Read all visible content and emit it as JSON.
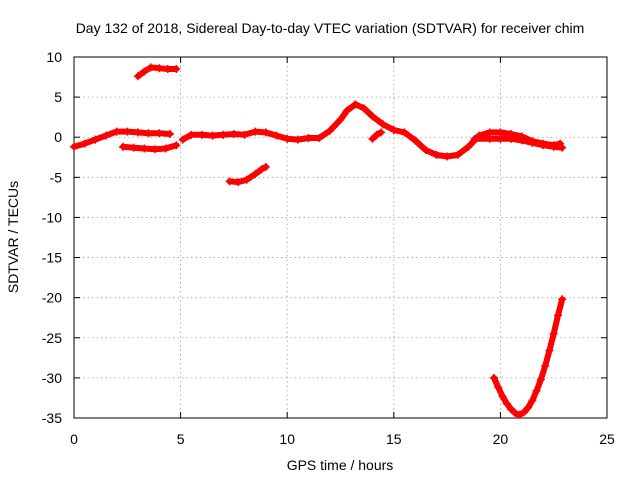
{
  "chart_data": {
    "type": "scatter",
    "title": "Day 132 of 2018, Sidereal Day-to-day VTEC variation (SDTVAR) for receiver chim",
    "xlabel": "GPS time / hours",
    "ylabel": "SDTVAR / TECUs",
    "xlim": [
      0,
      25
    ],
    "ylim": [
      -35,
      10
    ],
    "xticks": [
      0,
      5,
      10,
      15,
      20,
      25
    ],
    "yticks": [
      10,
      5,
      0,
      -5,
      -10,
      -15,
      -20,
      -25,
      -30,
      -35
    ],
    "grid": true,
    "marker": "plus",
    "series_color": "#ff0000",
    "series": [
      {
        "name": "segment-1",
        "points": [
          [
            0,
            -1.2
          ],
          [
            0.5,
            -0.8
          ],
          [
            1.0,
            -0.3
          ],
          [
            1.5,
            0.2
          ],
          [
            2.0,
            0.7
          ],
          [
            2.5,
            0.7
          ],
          [
            3.0,
            0.6
          ],
          [
            3.5,
            0.5
          ],
          [
            4.0,
            0.5
          ],
          [
            4.5,
            0.4
          ]
        ]
      },
      {
        "name": "segment-2",
        "points": [
          [
            2.3,
            -1.2
          ],
          [
            2.8,
            -1.3
          ],
          [
            3.3,
            -1.4
          ],
          [
            3.8,
            -1.5
          ],
          [
            4.3,
            -1.4
          ],
          [
            4.8,
            -1.0
          ]
        ]
      },
      {
        "name": "segment-3",
        "points": [
          [
            3.0,
            7.6
          ],
          [
            3.3,
            8.2
          ],
          [
            3.6,
            8.7
          ],
          [
            4.0,
            8.6
          ],
          [
            4.4,
            8.5
          ],
          [
            4.8,
            8.5
          ]
        ]
      },
      {
        "name": "segment-4",
        "points": [
          [
            5.1,
            -0.3
          ],
          [
            5.5,
            0.3
          ],
          [
            6.0,
            0.3
          ],
          [
            6.5,
            0.2
          ],
          [
            7.0,
            0.3
          ],
          [
            7.5,
            0.4
          ],
          [
            8.0,
            0.3
          ],
          [
            8.5,
            0.7
          ],
          [
            9.0,
            0.6
          ],
          [
            9.5,
            0.2
          ],
          [
            10.0,
            -0.2
          ],
          [
            10.5,
            -0.3
          ],
          [
            11.0,
            -0.1
          ],
          [
            11.5,
            -0.1
          ],
          [
            12.0,
            0.8
          ],
          [
            12.5,
            2.2
          ],
          [
            12.8,
            3.3
          ],
          [
            13.2,
            4.1
          ],
          [
            13.6,
            3.6
          ],
          [
            14.0,
            2.6
          ],
          [
            14.5,
            1.6
          ],
          [
            15.0,
            0.9
          ],
          [
            15.5,
            0.6
          ],
          [
            16.0,
            -0.4
          ],
          [
            16.5,
            -1.6
          ],
          [
            17.0,
            -2.2
          ],
          [
            17.5,
            -2.4
          ],
          [
            18.0,
            -2.2
          ],
          [
            18.5,
            -1.2
          ],
          [
            19.0,
            0.2
          ],
          [
            19.5,
            0.6
          ],
          [
            20.0,
            0.6
          ],
          [
            20.5,
            0.4
          ],
          [
            21.0,
            0.1
          ],
          [
            21.5,
            -0.5
          ],
          [
            22.0,
            -0.8
          ],
          [
            22.5,
            -1.0
          ],
          [
            22.8,
            -0.8
          ]
        ]
      },
      {
        "name": "segment-5",
        "points": [
          [
            18.8,
            -0.2
          ],
          [
            19.5,
            -0.2
          ],
          [
            20.0,
            -0.2
          ],
          [
            20.5,
            -0.2
          ],
          [
            21.0,
            -0.4
          ],
          [
            21.5,
            -0.7
          ],
          [
            22.0,
            -1.0
          ],
          [
            22.5,
            -1.2
          ],
          [
            22.9,
            -1.3
          ]
        ]
      },
      {
        "name": "segment-6",
        "points": [
          [
            14.0,
            -0.2
          ],
          [
            14.2,
            0.3
          ],
          [
            14.4,
            0.6
          ]
        ]
      },
      {
        "name": "segment-7",
        "points": [
          [
            7.3,
            -5.5
          ],
          [
            7.7,
            -5.6
          ],
          [
            8.1,
            -5.3
          ],
          [
            8.5,
            -4.6
          ],
          [
            8.8,
            -4.0
          ],
          [
            9.0,
            -3.7
          ]
        ]
      },
      {
        "name": "segment-8",
        "points": [
          [
            19.7,
            -30.0
          ],
          [
            19.9,
            -31.2
          ],
          [
            20.1,
            -32.3
          ],
          [
            20.3,
            -33.2
          ],
          [
            20.5,
            -33.9
          ],
          [
            20.7,
            -34.4
          ],
          [
            20.9,
            -34.6
          ],
          [
            21.1,
            -34.3
          ],
          [
            21.3,
            -33.7
          ],
          [
            21.5,
            -32.8
          ],
          [
            21.7,
            -31.6
          ],
          [
            21.9,
            -30.2
          ],
          [
            22.1,
            -28.5
          ],
          [
            22.3,
            -26.6
          ],
          [
            22.5,
            -24.5
          ],
          [
            22.7,
            -22.2
          ],
          [
            22.9,
            -20.2
          ]
        ]
      }
    ]
  }
}
